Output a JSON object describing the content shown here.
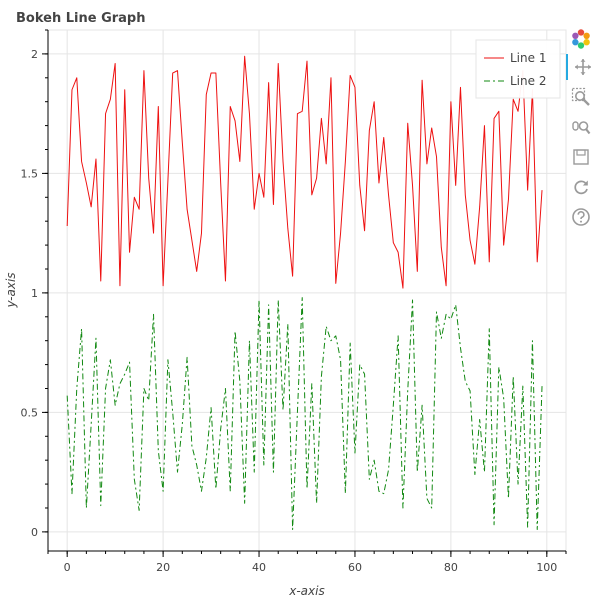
{
  "chart_data": {
    "type": "line",
    "title": "Bokeh Line Graph",
    "xlabel": "x-axis",
    "ylabel": "y-axis",
    "xlim": [
      -4,
      104
    ],
    "ylim": [
      -0.08,
      2.1
    ],
    "x_ticks": [
      0,
      20,
      40,
      60,
      80,
      100
    ],
    "y_ticks": [
      0,
      0.5,
      1,
      1.5,
      2
    ],
    "y_tick_labels": [
      "0",
      "0.5",
      "1",
      "1.5",
      "2"
    ],
    "grid": true,
    "legend_position": "top-right",
    "series": [
      {
        "name": "Line 1",
        "color": "#ee1111",
        "dash": "solid",
        "x": [
          0,
          1,
          2,
          3,
          4,
          5,
          6,
          7,
          8,
          9,
          10,
          11,
          12,
          13,
          14,
          15,
          16,
          17,
          18,
          19,
          20,
          21,
          22,
          23,
          24,
          25,
          26,
          27,
          28,
          29,
          30,
          31,
          32,
          33,
          34,
          35,
          36,
          37,
          38,
          39,
          40,
          41,
          42,
          43,
          44,
          45,
          46,
          47,
          48,
          49,
          50,
          51,
          52,
          53,
          54,
          55,
          56,
          57,
          58,
          59,
          60,
          61,
          62,
          63,
          64,
          65,
          66,
          67,
          68,
          69,
          70,
          71,
          72,
          73,
          74,
          75,
          76,
          77,
          78,
          79,
          80,
          81,
          82,
          83,
          84,
          85,
          86,
          87,
          88,
          89,
          90,
          91,
          92,
          93,
          94,
          95,
          96,
          97,
          98,
          99
        ],
        "values": [
          1.28,
          1.85,
          1.9,
          1.55,
          1.46,
          1.36,
          1.56,
          1.05,
          1.75,
          1.81,
          1.96,
          1.03,
          1.85,
          1.17,
          1.4,
          1.35,
          1.93,
          1.48,
          1.25,
          1.78,
          1.03,
          1.47,
          1.92,
          1.93,
          1.63,
          1.35,
          1.22,
          1.09,
          1.25,
          1.83,
          1.92,
          1.92,
          1.46,
          1.05,
          1.78,
          1.72,
          1.55,
          1.99,
          1.75,
          1.35,
          1.5,
          1.4,
          1.88,
          1.37,
          1.96,
          1.55,
          1.27,
          1.07,
          1.75,
          1.76,
          1.97,
          1.41,
          1.48,
          1.73,
          1.54,
          1.9,
          1.04,
          1.25,
          1.55,
          1.91,
          1.86,
          1.45,
          1.26,
          1.68,
          1.8,
          1.46,
          1.65,
          1.41,
          1.21,
          1.17,
          1.02,
          1.71,
          1.45,
          1.09,
          1.89,
          1.54,
          1.69,
          1.57,
          1.19,
          1.03,
          1.8,
          1.45,
          1.86,
          1.41,
          1.22,
          1.12,
          1.36,
          1.7,
          1.13,
          1.73,
          1.76,
          1.2,
          1.39,
          1.81,
          1.76,
          1.93,
          1.43,
          1.85,
          1.13,
          1.43
        ]
      },
      {
        "name": "Line 2",
        "color": "#118811",
        "dash": "dashdot",
        "x": [
          0,
          1,
          2,
          3,
          4,
          5,
          6,
          7,
          8,
          9,
          10,
          11,
          12,
          13,
          14,
          15,
          16,
          17,
          18,
          19,
          20,
          21,
          22,
          23,
          24,
          25,
          26,
          27,
          28,
          29,
          30,
          31,
          32,
          33,
          34,
          35,
          36,
          37,
          38,
          39,
          40,
          41,
          42,
          43,
          44,
          45,
          46,
          47,
          48,
          49,
          50,
          51,
          52,
          53,
          54,
          55,
          56,
          57,
          58,
          59,
          60,
          61,
          62,
          63,
          64,
          65,
          66,
          67,
          68,
          69,
          70,
          71,
          72,
          73,
          74,
          75,
          76,
          77,
          78,
          79,
          80,
          81,
          82,
          83,
          84,
          85,
          86,
          87,
          88,
          89,
          90,
          91,
          92,
          93,
          94,
          95,
          96,
          97,
          98,
          99
        ],
        "values": [
          0.57,
          0.16,
          0.6,
          0.85,
          0.1,
          0.45,
          0.81,
          0.11,
          0.6,
          0.72,
          0.53,
          0.62,
          0.66,
          0.71,
          0.22,
          0.09,
          0.6,
          0.55,
          0.91,
          0.34,
          0.17,
          0.72,
          0.5,
          0.25,
          0.45,
          0.73,
          0.36,
          0.28,
          0.17,
          0.31,
          0.52,
          0.18,
          0.43,
          0.6,
          0.17,
          0.84,
          0.63,
          0.12,
          0.8,
          0.25,
          0.97,
          0.28,
          0.95,
          0.25,
          0.97,
          0.51,
          0.87,
          0.01,
          0.5,
          0.98,
          0.18,
          0.62,
          0.12,
          0.65,
          0.86,
          0.8,
          0.82,
          0.72,
          0.16,
          0.79,
          0.33,
          0.7,
          0.66,
          0.22,
          0.3,
          0.17,
          0.16,
          0.26,
          0.53,
          0.82,
          0.1,
          0.59,
          0.97,
          0.25,
          0.53,
          0.14,
          0.1,
          0.92,
          0.81,
          0.91,
          0.89,
          0.95,
          0.77,
          0.63,
          0.59,
          0.24,
          0.47,
          0.25,
          0.85,
          0.03,
          0.69,
          0.56,
          0.14,
          0.65,
          0.2,
          0.61,
          0.02,
          0.8,
          0.01,
          0.61
        ]
      }
    ]
  },
  "toolbar": {
    "tools": [
      {
        "name": "bokeh-logo",
        "icon": "bokeh-logo-icon",
        "interactable": false
      },
      {
        "name": "pan-tool",
        "icon": "pan-icon",
        "interactable": true
      },
      {
        "name": "box-zoom-tool",
        "icon": "box-zoom-icon",
        "interactable": true
      },
      {
        "name": "wheel-zoom-tool",
        "icon": "wheel-zoom-icon",
        "interactable": true
      },
      {
        "name": "save-tool",
        "icon": "save-icon",
        "interactable": true
      },
      {
        "name": "reset-tool",
        "icon": "reset-icon",
        "interactable": true
      },
      {
        "name": "help-tool",
        "icon": "help-icon",
        "interactable": true
      }
    ],
    "accent_color": "#26aae1"
  }
}
